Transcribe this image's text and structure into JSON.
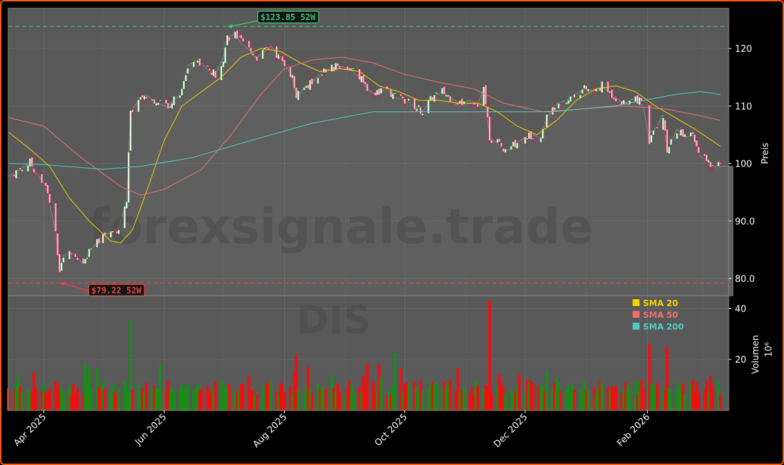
{
  "chart_data": {
    "type": "candlestick",
    "ticker_watermark": "DIS",
    "site_watermark": "forexsignale.trade",
    "price_panel": {
      "ylabel": "Preis",
      "ylim": [
        77,
        127
      ],
      "yticks": [
        80.0,
        90.0,
        100,
        110,
        120
      ],
      "ytick_labels": [
        "80.0",
        "90.0",
        "100",
        "110",
        "120"
      ]
    },
    "volume_panel": {
      "ylabel": "Volumen",
      "unit_label": "10⁶",
      "ylim": [
        0,
        45
      ],
      "yticks": [
        20,
        40
      ],
      "ytick_labels": [
        "20",
        "40"
      ]
    },
    "x_axis": {
      "start": "2025-03-14",
      "end": "2026-03-10",
      "ticks": [
        {
          "date": "2025-04-01",
          "label": "Apr 2025"
        },
        {
          "date": "2025-06-01",
          "label": "Jun 2025"
        },
        {
          "date": "2025-08-01",
          "label": "Aug 2025"
        },
        {
          "date": "2025-10-01",
          "label": "Oct 2025"
        },
        {
          "date": "2025-12-01",
          "label": "Dec 2025"
        },
        {
          "date": "2026-02-01",
          "label": "Feb 2026"
        }
      ],
      "minor_grid_dates": [
        "2025-05-01",
        "2025-07-01",
        "2025-09-01",
        "2025-11-01",
        "2026-01-01",
        "2026-03-01"
      ]
    },
    "close_path": [
      [
        "2025-03-14",
        97.8
      ],
      [
        "2025-03-20",
        99.0
      ],
      [
        "2025-03-25",
        100.2
      ],
      [
        "2025-03-28",
        98.5
      ],
      [
        "2025-04-02",
        96.0
      ],
      [
        "2025-04-04",
        93.0
      ],
      [
        "2025-04-07",
        88.0
      ],
      [
        "2025-04-09",
        81.5
      ],
      [
        "2025-04-11",
        84.0
      ],
      [
        "2025-04-16",
        84.5
      ],
      [
        "2025-04-21",
        82.5
      ],
      [
        "2025-04-25",
        85.0
      ],
      [
        "2025-05-01",
        87.5
      ],
      [
        "2025-05-06",
        88.2
      ],
      [
        "2025-05-09",
        88.8
      ],
      [
        "2025-05-13",
        93.5
      ],
      [
        "2025-05-15",
        109.0
      ],
      [
        "2025-05-20",
        111.5
      ],
      [
        "2025-05-23",
        112.0
      ],
      [
        "2025-05-28",
        110.5
      ],
      [
        "2025-06-02",
        110.0
      ],
      [
        "2025-06-06",
        111.0
      ],
      [
        "2025-06-10",
        112.5
      ],
      [
        "2025-06-13",
        117.0
      ],
      [
        "2025-06-17",
        118.0
      ],
      [
        "2025-06-20",
        117.5
      ],
      [
        "2025-06-24",
        116.0
      ],
      [
        "2025-06-27",
        115.5
      ],
      [
        "2025-07-01",
        118.5
      ],
      [
        "2025-07-03",
        122.0
      ],
      [
        "2025-07-07",
        122.5
      ],
      [
        "2025-07-10",
        121.0
      ],
      [
        "2025-07-15",
        119.5
      ],
      [
        "2025-07-18",
        118.5
      ],
      [
        "2025-07-22",
        119.5
      ],
      [
        "2025-07-25",
        120.5
      ],
      [
        "2025-07-29",
        118.5
      ],
      [
        "2025-08-01",
        117.5
      ],
      [
        "2025-08-05",
        115.0
      ],
      [
        "2025-08-07",
        111.5
      ],
      [
        "2025-08-12",
        113.5
      ],
      [
        "2025-08-15",
        114.0
      ],
      [
        "2025-08-20",
        116.0
      ],
      [
        "2025-08-25",
        116.5
      ],
      [
        "2025-08-29",
        117.0
      ],
      [
        "2025-09-03",
        116.5
      ],
      [
        "2025-09-08",
        115.0
      ],
      [
        "2025-09-12",
        113.0
      ],
      [
        "2025-09-16",
        112.0
      ],
      [
        "2025-09-22",
        113.0
      ],
      [
        "2025-09-26",
        111.5
      ],
      [
        "2025-10-01",
        111.0
      ],
      [
        "2025-10-06",
        110.0
      ],
      [
        "2025-10-10",
        109.0
      ],
      [
        "2025-10-15",
        111.5
      ],
      [
        "2025-10-20",
        112.5
      ],
      [
        "2025-10-24",
        111.5
      ],
      [
        "2025-10-29",
        110.5
      ],
      [
        "2025-11-03",
        111.0
      ],
      [
        "2025-11-07",
        110.5
      ],
      [
        "2025-11-10",
        113.0
      ],
      [
        "2025-11-13",
        104.5
      ],
      [
        "2025-11-17",
        103.5
      ],
      [
        "2025-11-21",
        102.0
      ],
      [
        "2025-11-26",
        103.5
      ],
      [
        "2025-12-01",
        104.5
      ],
      [
        "2025-12-05",
        105.0
      ],
      [
        "2025-12-09",
        104.5
      ],
      [
        "2025-12-12",
        108.0
      ],
      [
        "2025-12-17",
        110.5
      ],
      [
        "2025-12-22",
        111.0
      ],
      [
        "2025-12-26",
        112.0
      ],
      [
        "2025-12-31",
        113.0
      ],
      [
        "2026-01-06",
        112.5
      ],
      [
        "2026-01-09",
        113.5
      ],
      [
        "2026-01-14",
        112.0
      ],
      [
        "2026-01-20",
        110.5
      ],
      [
        "2026-01-26",
        111.5
      ],
      [
        "2026-01-30",
        110.0
      ],
      [
        "2026-02-02",
        103.5
      ],
      [
        "2026-02-05",
        106.0
      ],
      [
        "2026-02-09",
        108.5
      ],
      [
        "2026-02-11",
        102.0
      ],
      [
        "2026-02-16",
        106.0
      ],
      [
        "2026-02-20",
        104.5
      ],
      [
        "2026-02-24",
        105.0
      ],
      [
        "2026-02-27",
        101.5
      ],
      [
        "2026-03-03",
        100.5
      ],
      [
        "2026-03-06",
        99.5
      ],
      [
        "2026-03-10",
        99.5
      ]
    ],
    "series": [
      {
        "name": "SMA 20",
        "color": "#f5d400",
        "points": [
          [
            "2025-03-14",
            105.5
          ],
          [
            "2025-03-25",
            102.5
          ],
          [
            "2025-04-04",
            99.5
          ],
          [
            "2025-04-14",
            94.0
          ],
          [
            "2025-04-24",
            90.0
          ],
          [
            "2025-05-05",
            86.5
          ],
          [
            "2025-05-10",
            86.2
          ],
          [
            "2025-05-16",
            88.5
          ],
          [
            "2025-05-24",
            96.0
          ],
          [
            "2025-06-01",
            104.0
          ],
          [
            "2025-06-10",
            110.0
          ],
          [
            "2025-06-20",
            112.5
          ],
          [
            "2025-06-30",
            115.0
          ],
          [
            "2025-07-10",
            118.5
          ],
          [
            "2025-07-20",
            120.0
          ],
          [
            "2025-07-30",
            119.5
          ],
          [
            "2025-08-09",
            117.5
          ],
          [
            "2025-08-19",
            116.0
          ],
          [
            "2025-08-29",
            116.5
          ],
          [
            "2025-09-08",
            116.0
          ],
          [
            "2025-09-18",
            113.5
          ],
          [
            "2025-09-28",
            112.5
          ],
          [
            "2025-10-08",
            111.0
          ],
          [
            "2025-10-18",
            111.0
          ],
          [
            "2025-10-28",
            110.5
          ],
          [
            "2025-11-07",
            110.5
          ],
          [
            "2025-11-17",
            109.0
          ],
          [
            "2025-11-27",
            106.5
          ],
          [
            "2025-12-07",
            105.0
          ],
          [
            "2025-12-17",
            107.5
          ],
          [
            "2025-12-27",
            111.0
          ],
          [
            "2026-01-06",
            113.0
          ],
          [
            "2026-01-16",
            113.5
          ],
          [
            "2026-01-26",
            112.5
          ],
          [
            "2026-02-05",
            110.0
          ],
          [
            "2026-02-15",
            108.0
          ],
          [
            "2026-02-25",
            106.0
          ],
          [
            "2026-03-10",
            103.0
          ]
        ]
      },
      {
        "name": "SMA 50",
        "color": "#f07070",
        "points": [
          [
            "2025-03-14",
            108.0
          ],
          [
            "2025-04-01",
            106.5
          ],
          [
            "2025-04-20",
            101.0
          ],
          [
            "2025-05-10",
            96.0
          ],
          [
            "2025-05-20",
            94.5
          ],
          [
            "2025-06-01",
            95.5
          ],
          [
            "2025-06-20",
            99.0
          ],
          [
            "2025-07-05",
            105.0
          ],
          [
            "2025-07-20",
            112.0
          ],
          [
            "2025-08-01",
            116.5
          ],
          [
            "2025-08-15",
            118.0
          ],
          [
            "2025-08-30",
            118.5
          ],
          [
            "2025-09-15",
            117.5
          ],
          [
            "2025-10-01",
            115.5
          ],
          [
            "2025-10-20",
            114.0
          ],
          [
            "2025-11-05",
            113.0
          ],
          [
            "2025-11-20",
            110.5
          ],
          [
            "2025-12-10",
            109.0
          ],
          [
            "2025-12-30",
            109.5
          ],
          [
            "2026-01-20",
            110.0
          ],
          [
            "2026-02-10",
            109.5
          ],
          [
            "2026-02-25",
            108.5
          ],
          [
            "2026-03-10",
            107.5
          ]
        ]
      },
      {
        "name": "SMA 200",
        "color": "#4ecdc4",
        "points": [
          [
            "2025-03-14",
            100.0
          ],
          [
            "2025-04-01",
            99.8
          ],
          [
            "2025-05-01",
            99.0
          ],
          [
            "2025-05-20",
            99.5
          ],
          [
            "2025-06-15",
            101.0
          ],
          [
            "2025-07-15",
            104.0
          ],
          [
            "2025-08-15",
            107.0
          ],
          [
            "2025-09-15",
            109.0
          ],
          [
            "2025-10-15",
            109.0
          ],
          [
            "2025-11-15",
            109.0
          ],
          [
            "2025-12-15",
            109.0
          ],
          [
            "2026-01-15",
            110.0
          ],
          [
            "2026-02-15",
            112.0
          ],
          [
            "2026-02-28",
            112.5
          ],
          [
            "2026-03-10",
            112.0
          ]
        ]
      }
    ],
    "annotations": [
      {
        "label": "$123.85 52W",
        "value": 123.85,
        "date": "2025-07-03",
        "color": "#3fbf6f"
      },
      {
        "label": "$79.22 52W",
        "value": 79.22,
        "date": "2025-04-09",
        "color": "#e04545"
      }
    ],
    "legend": {
      "position": "volume-panel-top-right",
      "entries": [
        "SMA 20",
        "SMA 50",
        "SMA 200"
      ]
    },
    "volume_highlights": [
      {
        "date": "2025-05-15",
        "value": 35
      },
      {
        "date": "2025-11-13",
        "value": 43
      },
      {
        "date": "2026-02-02",
        "value": 26
      },
      {
        "date": "2026-02-11",
        "value": 25
      },
      {
        "date": "2025-09-26",
        "value": 23
      },
      {
        "date": "2025-08-07",
        "value": 22
      }
    ],
    "colors": {
      "up": "#1a8c1a",
      "down": "#ee1111",
      "panel_bg": "#595959",
      "grid": "#7a7a7a",
      "frame": "#ff5a00"
    }
  }
}
